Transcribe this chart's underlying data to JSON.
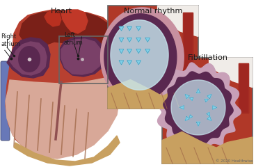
{
  "bg_color": "#ffffff",
  "title_heart": "Heart",
  "title_normal": "Normal rhythm",
  "title_fibril": "Fibrillation",
  "label_right": "Right\natrium",
  "label_left": "Left\natrium",
  "copyright": "© 2020 Healthwise",
  "heart_red": "#b84030",
  "heart_mid_red": "#a03028",
  "heart_dark_red": "#7a2018",
  "atrium_dark_purple": "#5a2850",
  "atrium_mid_purple": "#7a4068",
  "atrium_pink_wall": "#c890a0",
  "muscle_tan": "#c8a060",
  "muscle_stria": "#a06848",
  "muscle_pink": "#d8a898",
  "blue_arrow": "#80d0e8",
  "blue_arrow_dark": "#4090b0",
  "blue_vessel": "#6878b8",
  "zoom_border": "#666666",
  "fibril_wall": "#c8a0b8",
  "text_color": "#1a1a1a",
  "panel_bg_red": "#b03828",
  "white_area": "#f0ece8",
  "vessel_red": "#8a1818"
}
